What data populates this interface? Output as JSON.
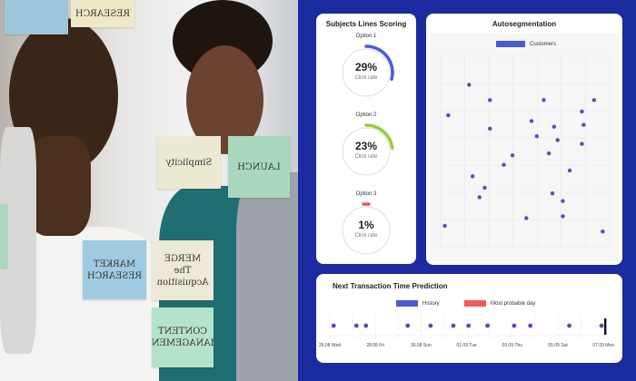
{
  "photo": {
    "notes": [
      "RESEARCH",
      "Simplicity",
      "LAUNCH",
      "MARKET RESEARCH",
      "MERGE The Acquisition",
      "CONTENT MANAGEMENT"
    ]
  },
  "subject_lines": {
    "title": "Subjects Lines Scoring",
    "options": [
      {
        "label": "Option 1",
        "value": 29,
        "value_label": "29%",
        "caption": "Click rate",
        "color": "#4a5bd4"
      },
      {
        "label": "Option 2",
        "value": 23,
        "value_label": "23%",
        "caption": "Click rate",
        "color": "#9acd32"
      },
      {
        "label": "Option 3",
        "value": 1,
        "value_label": "1%",
        "caption": "Click rate",
        "color": "#e85a5a"
      }
    ]
  },
  "chart_data": [
    {
      "type": "scatter",
      "title": "Autosegmentation",
      "legend": "top-center",
      "grid": true,
      "xlim": [
        0,
        100
      ],
      "ylim": [
        0,
        100
      ],
      "series": [
        {
          "name": "Customers",
          "color": "#4a4fc4",
          "points": [
            [
              19,
              85
            ],
            [
              31,
              77
            ],
            [
              62,
              77
            ],
            [
              91,
              77
            ],
            [
              7,
              69
            ],
            [
              84,
              71
            ],
            [
              55,
              66
            ],
            [
              68,
              63
            ],
            [
              85,
              64
            ],
            [
              31,
              62
            ],
            [
              58,
              58
            ],
            [
              70,
              56
            ],
            [
              84,
              54
            ],
            [
              65,
              49
            ],
            [
              44,
              48
            ],
            [
              39,
              43
            ],
            [
              77,
              40
            ],
            [
              21,
              37
            ],
            [
              28,
              31
            ],
            [
              25,
              26
            ],
            [
              67,
              28
            ],
            [
              73,
              24
            ],
            [
              52,
              15
            ],
            [
              73,
              16
            ],
            [
              5,
              11
            ],
            [
              96,
              8
            ]
          ]
        }
      ]
    },
    {
      "type": "scatter",
      "title": "Next Transaction Time Prediction",
      "legend": "top-center",
      "x_tick_labels": [
        "26.08 Wed",
        "28.08 Fri",
        "30.08 Sun",
        "01.09 Tue",
        "03.09 Thu",
        "05.09 Sat",
        "07.09 Mon"
      ],
      "series": [
        {
          "name": "History",
          "color": "#4a4fc4",
          "x": [
            "26.08 04:00",
            "27.08 04:00",
            "27.08 14:00",
            "29.08 10:00",
            "30.08 10:00",
            "31.08 10:00",
            "01.09 02:00",
            "01.09 22:00",
            "03.09 02:00",
            "03.09 19:00",
            "05.09 12:00",
            "06.09 22:00"
          ]
        },
        {
          "name": "Most probable day",
          "color": "#f05a5a",
          "x": [
            "07.09 00:00"
          ]
        }
      ]
    }
  ]
}
